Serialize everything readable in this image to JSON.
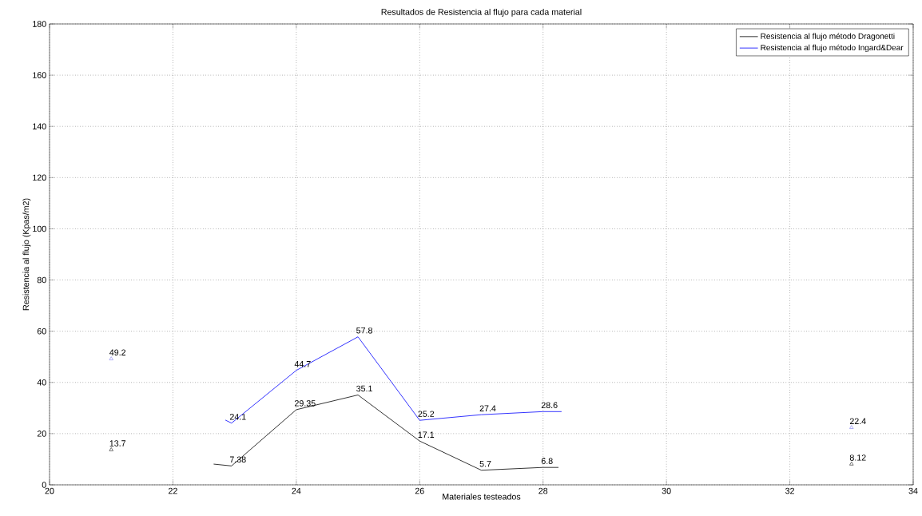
{
  "chart_data": {
    "type": "line",
    "title": "Resultados de Resistencia al flujo para cada material",
    "xlabel": "Materiales testeados",
    "ylabel": "Resistencia al flujo (Kpas/m2)",
    "xlim": [
      20,
      34
    ],
    "xticks": [
      20,
      22,
      24,
      26,
      28,
      30,
      32,
      34
    ],
    "ylim": [
      0,
      180
    ],
    "yticks": [
      0,
      20,
      40,
      60,
      80,
      100,
      120,
      140,
      160,
      180
    ],
    "grid": true,
    "legend": "top right",
    "series": [
      {
        "name": "Resistencia al flujo método Dragonetti",
        "color": "#000000",
        "x": [
          22.66,
          22.95,
          24,
          25,
          26,
          27,
          28,
          28.25
        ],
        "values": [
          8.1,
          7.38,
          29.35,
          35.1,
          17.1,
          5.7,
          6.8,
          6.8
        ],
        "value_labels": [
          null,
          "7.38",
          "29.35",
          "35.1",
          "17.1",
          "5.7",
          "6.8",
          null
        ]
      },
      {
        "name": "Resistencia al flujo método Ingard&Dear",
        "color": "#0000ff",
        "x": [
          22.85,
          22.95,
          24,
          25,
          26,
          27,
          28,
          28.3
        ],
        "values": [
          25.3,
          24.1,
          44.7,
          57.8,
          25.2,
          27.4,
          28.6,
          28.6
        ],
        "value_labels": [
          null,
          "24.1",
          "44.7",
          "57.8",
          "25.2",
          "27.4",
          "28.6",
          null
        ]
      },
      {
        "type": "scatter",
        "marker": "triangle",
        "color": "#000000",
        "x": [
          21,
          33
        ],
        "values": [
          13.7,
          8.12
        ],
        "value_labels": [
          "13.7",
          "8.12"
        ]
      },
      {
        "type": "scatter",
        "marker": "triangle",
        "color": "#7070ee",
        "x": [
          21,
          33
        ],
        "values": [
          49.2,
          22.4
        ],
        "value_labels": [
          "49.2",
          "22.4"
        ]
      }
    ]
  }
}
